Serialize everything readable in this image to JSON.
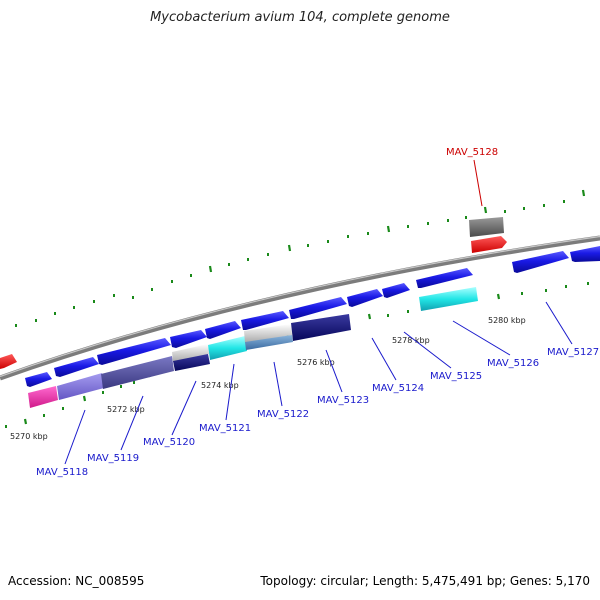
{
  "title": "Mycobacterium avium 104, complete genome",
  "footer": {
    "accession": "Accession: NC_008595",
    "summary": "Topology: circular; Length: 5,475,491 bp; Genes: 5,170"
  },
  "colors": {
    "background": "#ffffff",
    "backbone": "#8a8a8a",
    "forward_gene": "#1a1ae6",
    "gene_label": "#1a1acc",
    "highlight_label": "#cc0000",
    "tick": "#1a8a1a"
  },
  "tick_labels": [
    "5270 kbp",
    "5272 kbp",
    "5274 kbp",
    "5276 kbp",
    "5278 kbp",
    "5280 kbp"
  ],
  "gene_labels": [
    {
      "name": "MAV_5118",
      "highlight": false
    },
    {
      "name": "MAV_5119",
      "highlight": false
    },
    {
      "name": "MAV_5120",
      "highlight": false
    },
    {
      "name": "MAV_5121",
      "highlight": false
    },
    {
      "name": "MAV_5122",
      "highlight": false
    },
    {
      "name": "MAV_5123",
      "highlight": false
    },
    {
      "name": "MAV_5124",
      "highlight": false
    },
    {
      "name": "MAV_5125",
      "highlight": false
    },
    {
      "name": "MAV_5126",
      "highlight": false
    },
    {
      "name": "MAV_5127",
      "highlight": false
    },
    {
      "name": "MAV_5128",
      "highlight": true
    }
  ]
}
